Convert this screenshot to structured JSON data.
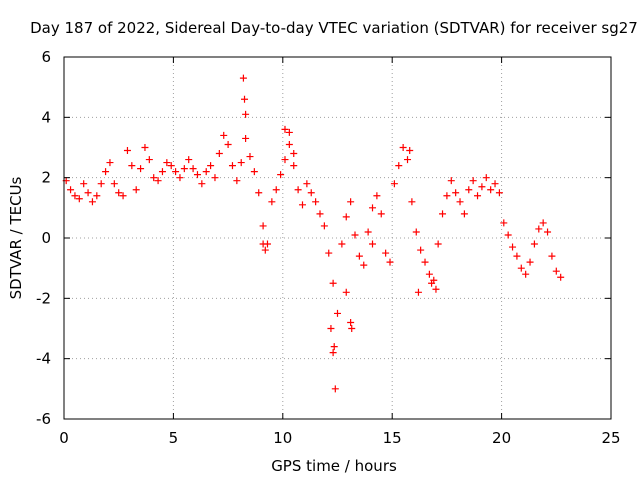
{
  "chart_data": {
    "type": "scatter",
    "title": "Day 187 of 2022, Sidereal Day-to-day VTEC variation (SDTVAR) for receiver sg27",
    "xlabel": "GPS time / hours",
    "ylabel": "SDTVAR / TECUs",
    "xlim": [
      0,
      25
    ],
    "ylim": [
      -6,
      6
    ],
    "xticks": [
      "0",
      "5",
      "10",
      "15",
      "20",
      "25"
    ],
    "yticks": [
      "-6",
      "-4",
      "-2",
      "0",
      "2",
      "4",
      "6"
    ],
    "grid": true,
    "marker": "+",
    "color": "#ff0000",
    "series": [
      {
        "name": "SDTVAR",
        "x": [
          0.1,
          0.3,
          0.5,
          0.7,
          0.9,
          1.1,
          1.3,
          1.5,
          1.7,
          1.9,
          2.1,
          2.3,
          2.5,
          2.7,
          2.9,
          3.1,
          3.3,
          3.5,
          3.7,
          3.9,
          4.1,
          4.3,
          4.5,
          4.7,
          4.9,
          5.1,
          5.3,
          5.5,
          5.7,
          5.9,
          6.1,
          6.3,
          6.5,
          6.7,
          6.9,
          7.1,
          7.3,
          7.5,
          7.7,
          7.9,
          8.1,
          8.3,
          8.5,
          8.7,
          8.9,
          9.1,
          9.3,
          9.5,
          9.7,
          9.9,
          10.1,
          10.3,
          10.5,
          10.7,
          10.9,
          11.1,
          11.3,
          11.5,
          11.7,
          11.9,
          12.1,
          12.3,
          12.5,
          12.7,
          12.9,
          13.1,
          13.3,
          13.5,
          13.7,
          13.9,
          14.1,
          14.3,
          14.5,
          14.7,
          14.9,
          15.1,
          15.3,
          15.5,
          15.7,
          15.9,
          16.1,
          16.3,
          16.5,
          16.7,
          16.9,
          17.1,
          17.3,
          17.5,
          17.7,
          17.9,
          18.1,
          18.3,
          18.5,
          18.7,
          18.9,
          19.1,
          19.3,
          19.5,
          19.7,
          19.9,
          20.1,
          20.3,
          20.5,
          20.7,
          20.9,
          21.1,
          21.3,
          21.5,
          21.7,
          21.9,
          22.1,
          22.3,
          22.5,
          22.7,
          8.2,
          8.25,
          8.3,
          12.3,
          12.35,
          12.4,
          12.2,
          13.1,
          13.15,
          9.1,
          9.2,
          15.8,
          16.2,
          16.8,
          17.0,
          10.1,
          10.3,
          10.5,
          14.1,
          12.9
        ],
        "y": [
          1.9,
          1.6,
          1.4,
          1.3,
          1.8,
          1.5,
          1.2,
          1.4,
          1.8,
          2.2,
          2.5,
          1.8,
          1.5,
          1.4,
          2.9,
          2.4,
          1.6,
          2.3,
          3.0,
          2.6,
          2.0,
          1.9,
          2.2,
          2.5,
          2.4,
          2.2,
          2.0,
          2.3,
          2.6,
          2.3,
          2.1,
          1.8,
          2.2,
          2.4,
          2.0,
          2.8,
          3.4,
          3.1,
          2.4,
          1.9,
          2.5,
          3.3,
          2.7,
          2.2,
          1.5,
          0.4,
          -0.2,
          1.2,
          1.6,
          2.1,
          2.6,
          3.5,
          2.4,
          1.6,
          1.1,
          1.8,
          1.5,
          1.2,
          0.8,
          0.4,
          -0.5,
          -1.5,
          -2.5,
          -0.2,
          0.7,
          1.2,
          0.1,
          -0.6,
          -0.9,
          0.2,
          1.0,
          1.4,
          0.8,
          -0.5,
          -0.8,
          1.8,
          2.4,
          3.0,
          2.6,
          1.2,
          0.2,
          -0.4,
          -0.8,
          -1.2,
          -1.4,
          -0.2,
          0.8,
          1.4,
          1.9,
          1.5,
          1.2,
          0.8,
          1.6,
          1.9,
          1.4,
          1.7,
          2.0,
          1.6,
          1.8,
          1.5,
          0.5,
          0.1,
          -0.3,
          -0.6,
          -1.0,
          -1.2,
          -0.8,
          -0.2,
          0.3,
          0.5,
          0.2,
          -0.6,
          -1.1,
          -1.3,
          5.3,
          4.6,
          4.1,
          -3.8,
          -3.6,
          -5.0,
          -3.0,
          -2.8,
          -3.0,
          -0.2,
          -0.4,
          2.9,
          -1.8,
          -1.5,
          -1.7,
          3.6,
          3.1,
          2.8,
          -0.2,
          -1.8
        ]
      }
    ]
  }
}
